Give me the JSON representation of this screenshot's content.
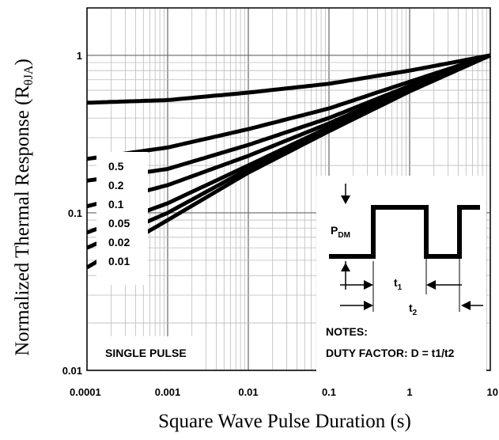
{
  "chart_data": {
    "type": "line",
    "x_scale": "log",
    "y_scale": "log",
    "xlim": [
      0.0001,
      10
    ],
    "ylim": [
      0.01,
      2
    ],
    "grid": true,
    "xlabel": "Square Wave Pulse Duration (s)",
    "ylabel_main": "Normalized Thermal Response (R",
    "ylabel_sub": "θJA",
    "ylabel_close": ")",
    "x_ticks": [
      {
        "value": 0.0001,
        "label": "0.0001"
      },
      {
        "value": 0.001,
        "label": "0.001"
      },
      {
        "value": 0.01,
        "label": "0.01"
      },
      {
        "value": 0.1,
        "label": "0.1"
      },
      {
        "value": 1,
        "label": "1"
      },
      {
        "value": 10,
        "label": "10"
      }
    ],
    "y_ticks": [
      {
        "value": 0.01,
        "label": "0.01"
      },
      {
        "value": 0.1,
        "label": "0.1"
      },
      {
        "value": 1,
        "label": "1"
      }
    ],
    "series": [
      {
        "name": "0.5",
        "x": [
          0.0001,
          0.001,
          0.01,
          0.1,
          1,
          10
        ],
        "y": [
          0.5,
          0.52,
          0.58,
          0.66,
          0.8,
          1.0
        ]
      },
      {
        "name": "0.2",
        "x": [
          0.0001,
          0.001,
          0.01,
          0.1,
          1,
          10
        ],
        "y": [
          0.22,
          0.26,
          0.34,
          0.46,
          0.68,
          1.0
        ]
      },
      {
        "name": "0.1",
        "x": [
          0.0001,
          0.001,
          0.01,
          0.1,
          1,
          10
        ],
        "y": [
          0.16,
          0.19,
          0.27,
          0.4,
          0.64,
          1.0
        ]
      },
      {
        "name": "0.05",
        "x": [
          0.0001,
          0.001,
          0.01,
          0.1,
          1,
          10
        ],
        "y": [
          0.11,
          0.15,
          0.23,
          0.37,
          0.62,
          1.0
        ]
      },
      {
        "name": "0.02",
        "x": [
          0.0001,
          0.001,
          0.01,
          0.1,
          1,
          10
        ],
        "y": [
          0.075,
          0.115,
          0.2,
          0.35,
          0.61,
          1.0
        ]
      },
      {
        "name": "0.01",
        "x": [
          0.0001,
          0.001,
          0.01,
          0.1,
          1,
          10
        ],
        "y": [
          0.06,
          0.1,
          0.19,
          0.34,
          0.6,
          1.0
        ]
      },
      {
        "name": "SINGLE PULSE",
        "x": [
          0.0001,
          0.001,
          0.01,
          0.1,
          1,
          10
        ],
        "y": [
          0.045,
          0.09,
          0.18,
          0.33,
          0.59,
          1.0
        ]
      }
    ],
    "legend_labels": [
      "0.5",
      "0.2",
      "0.1",
      "0.05",
      "0.02",
      "0.01"
    ],
    "single_pulse_label": "SINGLE PULSE",
    "inset": {
      "pdm_main": "P",
      "pdm_sub": "DM",
      "t1_main": "t",
      "t1_sub": "1",
      "t2_main": "t",
      "t2_sub": "2",
      "notes_title": "NOTES:",
      "notes_formula": "DUTY FACTOR: D = t1/t2"
    }
  }
}
